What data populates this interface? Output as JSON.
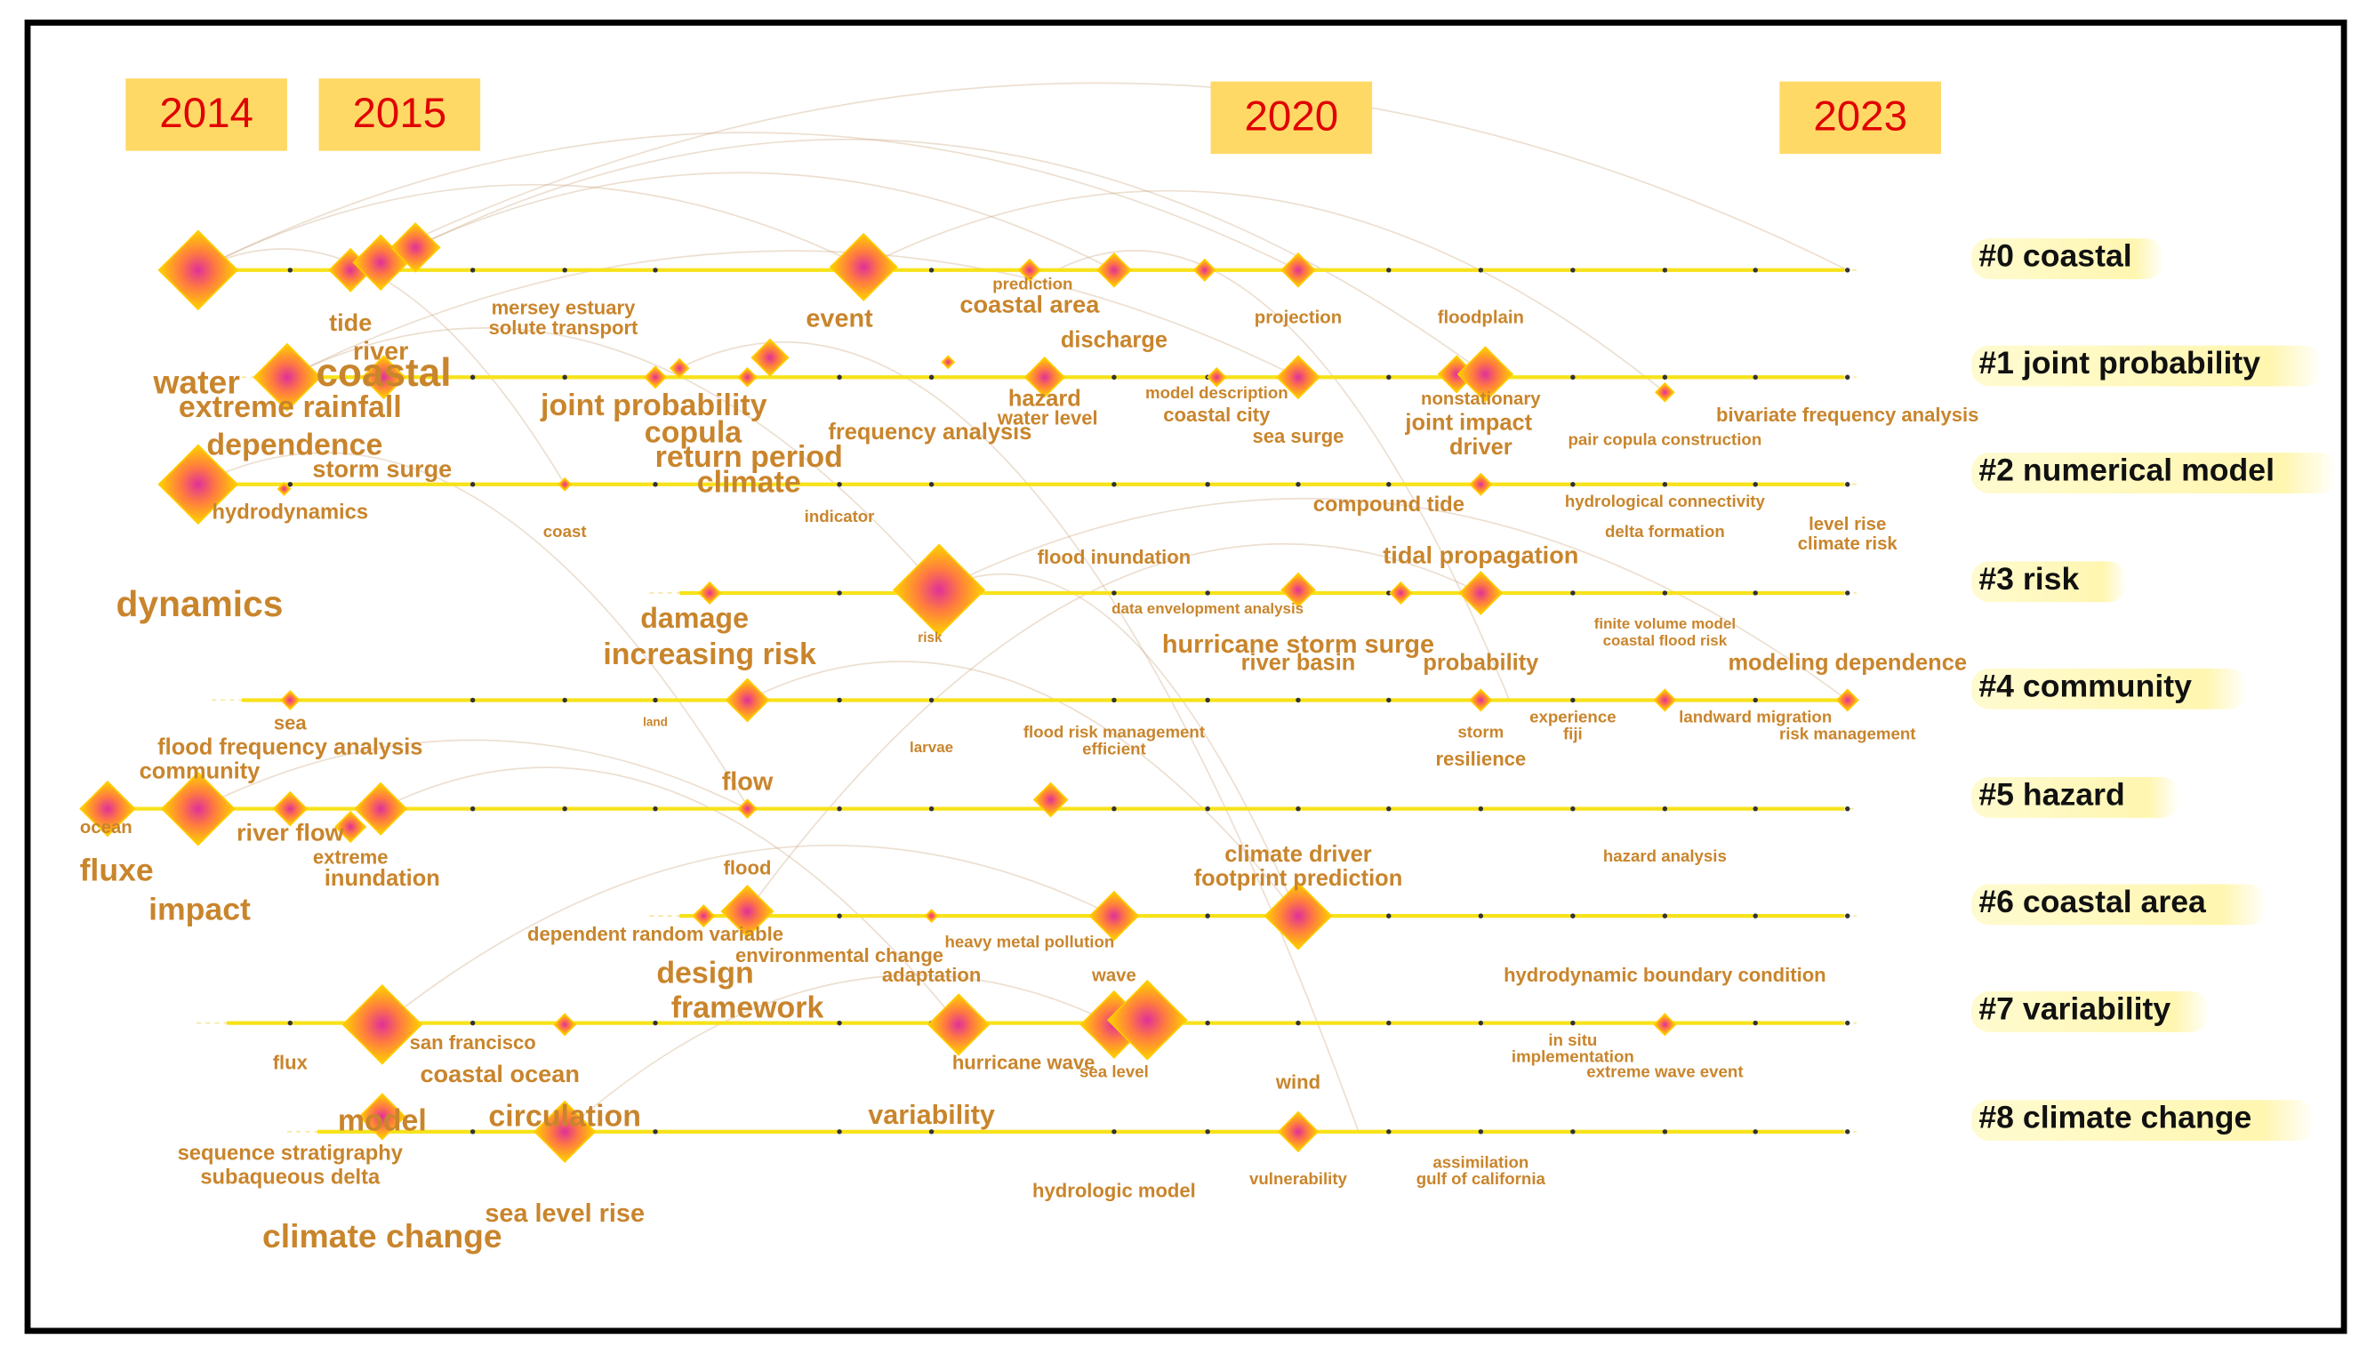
{
  "years": [
    "2014",
    "2015",
    "2020",
    "2023"
  ],
  "clusters": [
    "#0 coastal",
    "#1 joint probability",
    "#2 numerical model",
    "#3 risk",
    "#4 community",
    "#5 hazard",
    "#6 coastal area",
    "#7 variability",
    "#8 climate change"
  ],
  "keywords": [
    "tide",
    "river",
    "water",
    "coastal",
    "extreme rainfall",
    "dependence",
    "storm surge",
    "hydrodynamics",
    "dynamics",
    "mersey estuary",
    "solute transport",
    "event",
    "prediction",
    "coastal area",
    "discharge",
    "projection",
    "floodplain",
    "joint probability",
    "copula",
    "return period",
    "climate",
    "frequency analysis",
    "hazard",
    "water level",
    "model description",
    "coastal city",
    "sea surge",
    "nonstationary",
    "joint impact",
    "driver",
    "pair copula construction",
    "bivariate frequency analysis",
    "coast",
    "indicator",
    "compound tide",
    "hydrological connectivity",
    "delta formation",
    "level rise",
    "climate risk",
    "flood inundation",
    "tidal propagation",
    "damage",
    "increasing risk",
    "risk",
    "data envelopment analysis",
    "hurricane storm surge",
    "river basin",
    "probability",
    "finite volume model",
    "coastal flood risk",
    "modeling dependence",
    "sea",
    "flood frequency analysis",
    "community",
    "land",
    "larvae",
    "flood risk management",
    "efficient",
    "storm",
    "experience",
    "fiji",
    "landward migration",
    "risk management",
    "resilience",
    "ocean",
    "flow",
    "river flow",
    "extreme",
    "inundation",
    "fluxe",
    "impact",
    "flood",
    "climate driver",
    "footprint prediction",
    "hazard analysis",
    "dependent random variable",
    "environmental change",
    "heavy metal pollution",
    "design",
    "adaptation",
    "wave",
    "framework",
    "hydrodynamic boundary condition",
    "san francisco",
    "flux",
    "coastal ocean",
    "hurricane wave",
    "sea level",
    "wind",
    "in situ",
    "implementation",
    "extreme wave event",
    "model",
    "circulation",
    "variability",
    "sequence stratigraphy",
    "subaqueous delta",
    "hydrologic model",
    "vulnerability",
    "assimilation",
    "gulf of california",
    "sea level rise",
    "climate change"
  ]
}
